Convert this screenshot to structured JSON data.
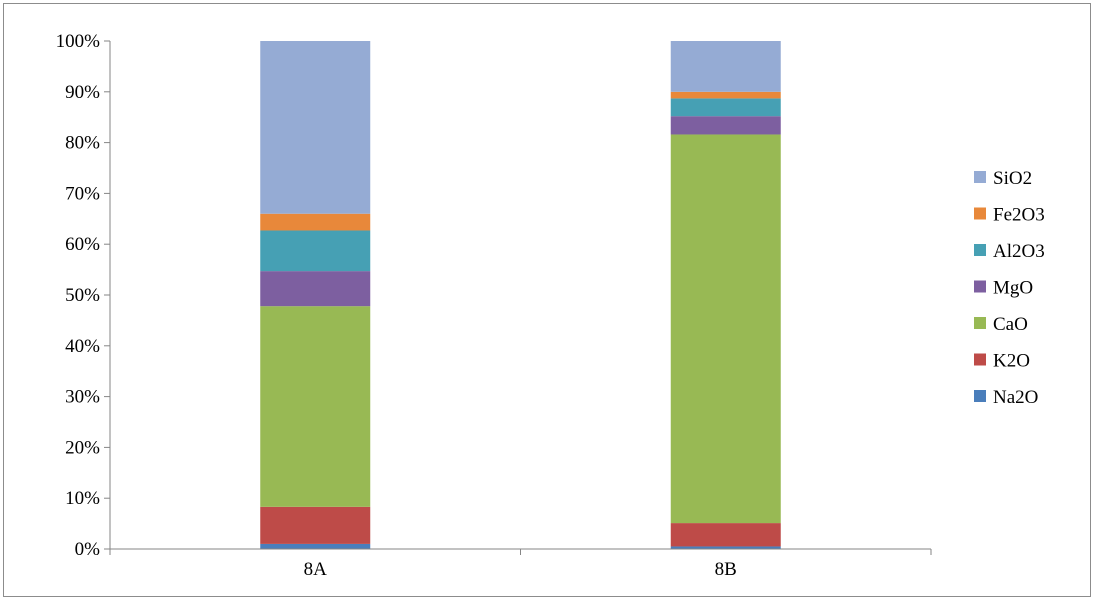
{
  "chart_data": {
    "type": "bar",
    "stacked": true,
    "percent_stacked": true,
    "categories": [
      "8A",
      "8B"
    ],
    "y_ticks": [
      "0%",
      "10%",
      "20%",
      "30%",
      "40%",
      "50%",
      "60%",
      "70%",
      "80%",
      "90%",
      "100%"
    ],
    "ylim": [
      0,
      100
    ],
    "grid": false,
    "legend_position": "right",
    "series": [
      {
        "name": "Na2O",
        "color": "#4a7ebb",
        "values": [
          1.0,
          0.5
        ]
      },
      {
        "name": "K2O",
        "color": "#be4b48",
        "values": [
          7.3,
          4.6
        ]
      },
      {
        "name": "CaO",
        "color": "#98b954",
        "values": [
          39.5,
          76.5
        ]
      },
      {
        "name": "MgO",
        "color": "#7d5fa0",
        "values": [
          6.9,
          3.6
        ]
      },
      {
        "name": "Al2O3",
        "color": "#46a0b4",
        "values": [
          8.0,
          3.5
        ]
      },
      {
        "name": "Fe2O3",
        "color": "#e8883a",
        "values": [
          3.3,
          1.3
        ]
      },
      {
        "name": "SiO2",
        "color": "#95abd4",
        "values": [
          34.0,
          10.0
        ]
      }
    ],
    "legend_labels": [
      "SiO2",
      "Fe2O3",
      "Al2O3",
      "MgO",
      "CaO",
      "K2O",
      "Na2O"
    ]
  }
}
